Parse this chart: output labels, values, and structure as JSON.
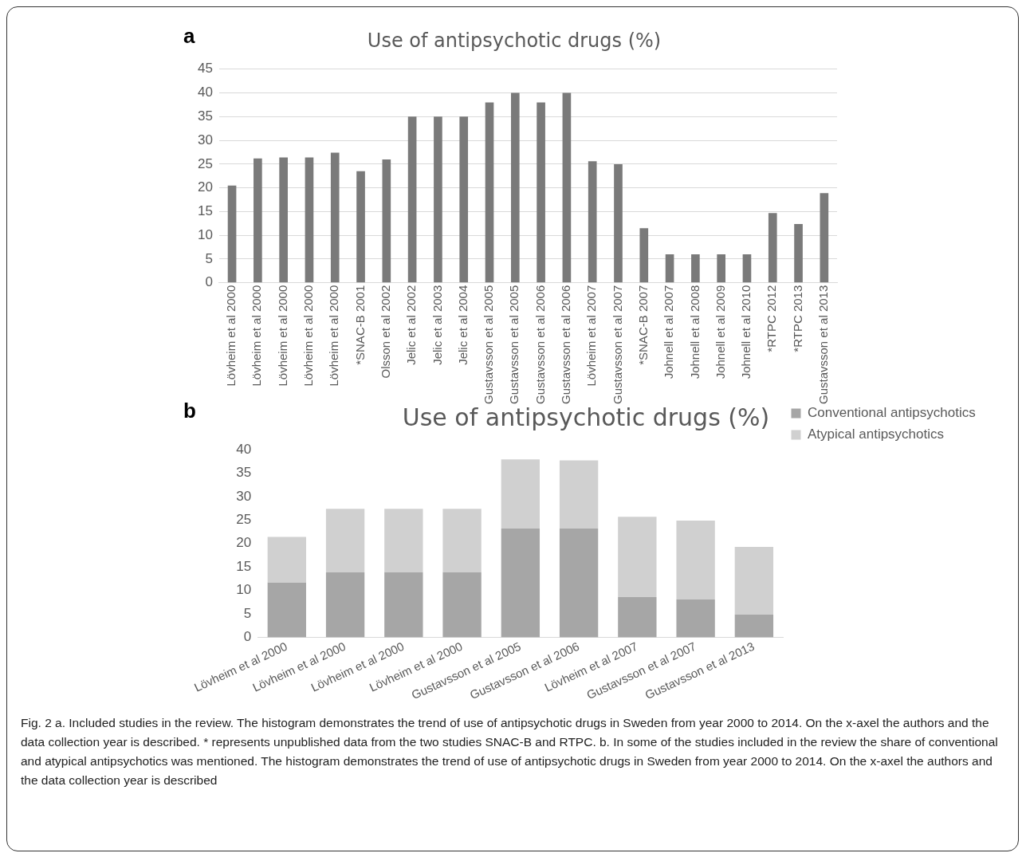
{
  "chart_data": [
    {
      "type": "bar",
      "title": "Use of antipsychotic drugs (%)",
      "annotations": [
        "a"
      ],
      "categories": [
        "Lövheim et al 2000",
        "Lövheim et al 2000",
        "Lövheim et al 2000",
        "Lövheim et al 2000",
        "Lövheim et al 2000",
        "*SNAC-B 2001",
        "Olsson et al 2002",
        "Jelic et al 2002",
        "Jelic et al 2003",
        "Jelic et al 2004",
        "Gustavsson et al 2005",
        "Gustavsson et al 2005",
        "Gustavsson et al 2006",
        "Gustavsson et al 2006",
        "Lövheim et al 2007",
        "Gustavsson et al 2007",
        "*SNAC-B 2007",
        "Johnell et al 2007",
        "Johnell et al 2008",
        "Johnell et al 2009",
        "Johnell et al 2010",
        "*RTPC 2012",
        "*RTPC 2013",
        "Gustavsson et al 2013"
      ],
      "values": [
        20.5,
        26.2,
        26.4,
        26.4,
        27.4,
        23.5,
        26,
        35,
        35,
        35,
        38,
        40,
        38,
        40,
        25.6,
        25,
        11.5,
        6,
        6,
        6,
        6,
        14.7,
        12.4,
        18.9
      ],
      "color": "#7a7a7a",
      "ylim": [
        0,
        45
      ],
      "yticks": [
        0,
        5,
        10,
        15,
        20,
        25,
        30,
        35,
        40,
        45
      ],
      "grid": "y",
      "legend": false
    },
    {
      "type": "bar",
      "title": "Use of antipsychotic drugs (%)",
      "stacked": true,
      "legend": "top right",
      "grid": false,
      "annotations": [
        "b",
        "Fig. 2 a. Included studies in the review. The histogram demonstrates the trend of use of antipsychotic drugs in Sweden from year 2000 to 2014. On the x-axel the authors and the data collection year is described. * represents unpublished data from the two studies SNAC-B and RTPC. b. In some of the studies included in the review the share of conventional and atypical antipsychotics was mentioned. The histogram demonstrates the trend of use of antipsychotic drugs in Sweden from year 2000 to 2014. On the x-axel the authors and the data collection year is described"
      ],
      "categories": [
        "Lövheim et al 2000",
        "Lövheim et al 2000",
        "Lövheim et al 2000",
        "Lövheim et al 2000",
        "Gustavsson et al 2005",
        "Gustavsson et al 2006",
        "Lövheim et al 2007",
        "Gustavsson et al 2007",
        "Gustavsson et al 2013"
      ],
      "series": [
        {
          "name": "Conventional antipsychotics",
          "color": "#a6a6a6",
          "values": [
            11.7,
            13.9,
            13.9,
            13.9,
            23.2,
            23.2,
            8.6,
            8.1,
            4.9
          ]
        },
        {
          "name": "Atypical antipsychotics",
          "color": "#d0d0d0",
          "values": [
            9.7,
            13.5,
            13.5,
            13.5,
            14.7,
            14.5,
            17.1,
            16.8,
            14.4
          ]
        }
      ],
      "ylim": [
        0,
        40
      ],
      "yticks": [
        0,
        5,
        10,
        15,
        20,
        25,
        30,
        35,
        40
      ]
    }
  ]
}
